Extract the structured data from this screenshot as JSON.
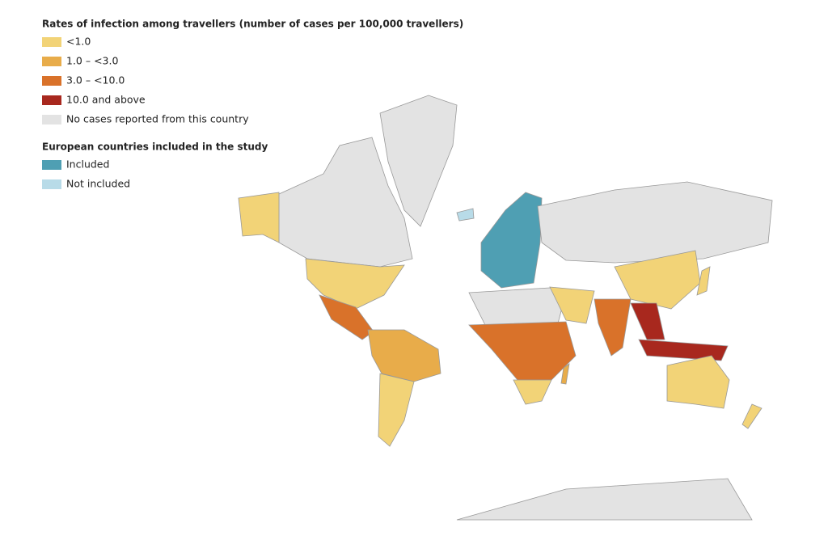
{
  "legend": {
    "title": "Rates of infection among travellers (number of cases per 100,000 travellers)",
    "items": [
      {
        "label": "<1.0",
        "color": "#f2d377"
      },
      {
        "label": "1.0 – <3.0",
        "color": "#e8ac4a"
      },
      {
        "label": "3.0 – <10.0",
        "color": "#d9722a"
      },
      {
        "label": "10.0 and above",
        "color": "#a8281e"
      },
      {
        "label": "No cases reported from this country",
        "color": "#e3e3e3"
      }
    ]
  },
  "europe_legend": {
    "title": "European countries included in the study",
    "items": [
      {
        "label": "Included",
        "color": "#4f9fb3"
      },
      {
        "label": "Not included",
        "color": "#b8dbe8"
      }
    ]
  }
}
